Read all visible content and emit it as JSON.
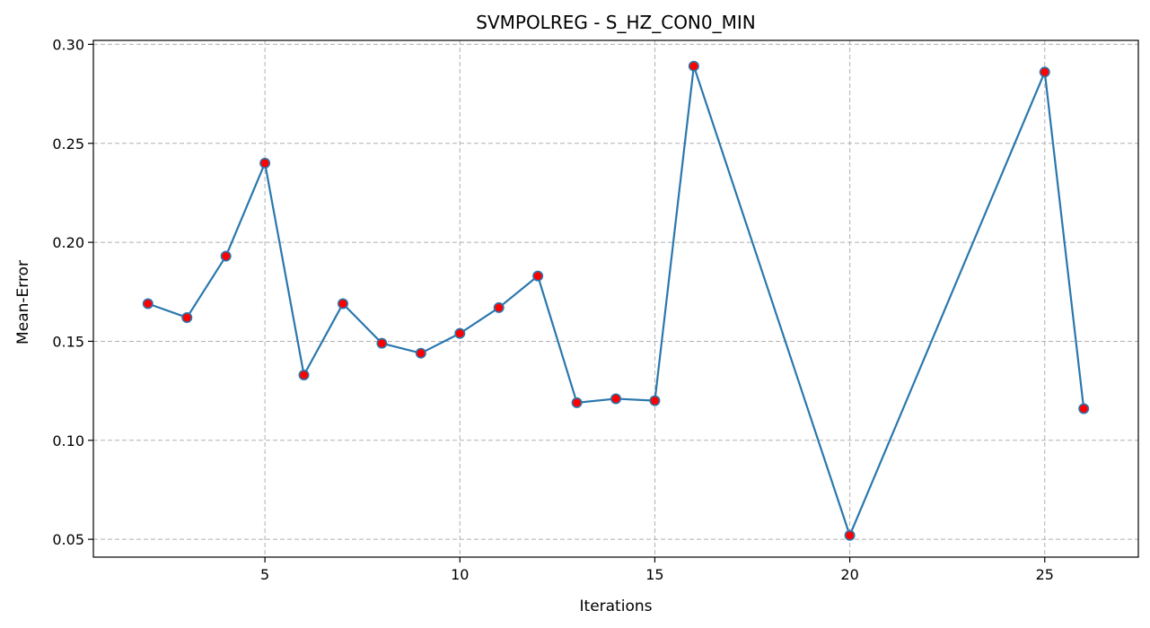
{
  "chart_data": {
    "type": "line",
    "title": "SVMPOLREG - S_HZ_CON0_MIN",
    "xlabel": "Iterations",
    "ylabel": "Mean-Error",
    "xlim": [
      0.6,
      27.4
    ],
    "ylim": [
      0.041,
      0.302
    ],
    "xticks": [
      5,
      10,
      15,
      20,
      25
    ],
    "yticks": [
      0.05,
      0.1,
      0.15,
      0.2,
      0.25,
      0.3
    ],
    "ytick_labels": [
      "0.05",
      "0.10",
      "0.15",
      "0.20",
      "0.25",
      "0.30"
    ],
    "grid": true,
    "line_color": "#2a77ad",
    "marker_fill": "#ff0000",
    "marker_edge": "#2a77ad",
    "x": [
      2,
      3,
      4,
      5,
      6,
      7,
      8,
      9,
      10,
      11,
      12,
      13,
      14,
      15,
      16,
      20,
      25,
      26
    ],
    "y": [
      0.169,
      0.162,
      0.193,
      0.24,
      0.133,
      0.169,
      0.149,
      0.144,
      0.154,
      0.167,
      0.183,
      0.119,
      0.121,
      0.12,
      0.289,
      0.052,
      0.286,
      0.116
    ]
  }
}
